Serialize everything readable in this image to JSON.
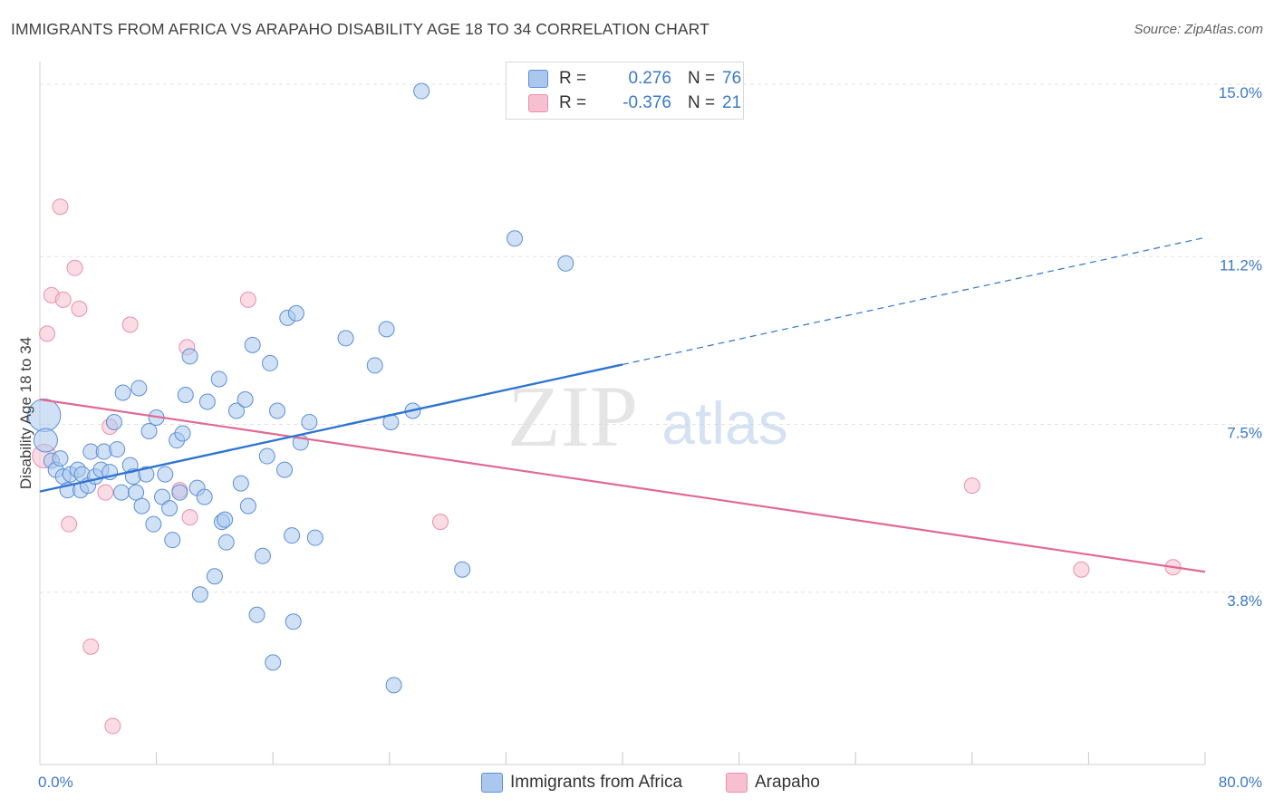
{
  "header": {
    "title": "IMMIGRANTS FROM AFRICA VS ARAPAHO DISABILITY AGE 18 TO 34 CORRELATION CHART",
    "source": "Source: ZipAtlas.com"
  },
  "watermark": {
    "zip": "ZIP",
    "atlas": "atlas"
  },
  "legend": {
    "rows": [
      {
        "r_label": "R =",
        "r_value": "0.276",
        "n_label": "N =",
        "n_value": "76"
      },
      {
        "r_label": "R =",
        "r_value": "-0.376",
        "n_label": "N =",
        "n_value": "21"
      }
    ]
  },
  "bottom_legend": {
    "items": [
      {
        "label": "Immigrants from Africa"
      },
      {
        "label": "Arapaho"
      }
    ]
  },
  "colors": {
    "blue_fill": "#aac8ee",
    "blue_stroke": "#5b8fd6",
    "blue_line": "#2f74d0",
    "pink_fill": "#f7c0d0",
    "pink_stroke": "#e890ac",
    "pink_line": "#e06a94",
    "tick_label": "#3a78c9",
    "grid": "#e3e3e3"
  },
  "chart_data": {
    "type": "scatter",
    "title": "IMMIGRANTS FROM AFRICA VS ARAPAHO DISABILITY AGE 18 TO 34 CORRELATION CHART",
    "xlabel": "",
    "ylabel": "Disability Age 18 to 34",
    "xlim": [
      0,
      80
    ],
    "ylim": [
      0,
      15.5
    ],
    "x_tick_labels": [
      "0.0%",
      "80.0%"
    ],
    "y_ticks": [
      3.8,
      7.5,
      11.2,
      15.0
    ],
    "y_tick_labels": [
      "3.8%",
      "7.5%",
      "11.2%",
      "15.0%"
    ],
    "grid": "horizontal dashed",
    "legend_position": "top-center",
    "series": [
      {
        "name": "Immigrants from Africa",
        "r": 0.276,
        "n": 76,
        "trend": {
          "x": [
            0,
            40
          ],
          "y": [
            6.02,
            8.82
          ]
        },
        "trend_extension": {
          "x": [
            40,
            80
          ],
          "y": [
            8.82,
            11.62
          ]
        },
        "points": [
          {
            "x": 0.3,
            "y": 7.7,
            "s": "xl"
          },
          {
            "x": 0.4,
            "y": 7.15,
            "s": "l"
          },
          {
            "x": 0.8,
            "y": 6.7
          },
          {
            "x": 1.1,
            "y": 6.5
          },
          {
            "x": 1.4,
            "y": 6.75
          },
          {
            "x": 1.6,
            "y": 6.35
          },
          {
            "x": 1.9,
            "y": 6.05
          },
          {
            "x": 2.1,
            "y": 6.4
          },
          {
            "x": 2.6,
            "y": 6.5
          },
          {
            "x": 2.8,
            "y": 6.05
          },
          {
            "x": 2.9,
            "y": 6.4
          },
          {
            "x": 3.3,
            "y": 6.15
          },
          {
            "x": 3.5,
            "y": 6.9
          },
          {
            "x": 3.8,
            "y": 6.35
          },
          {
            "x": 4.2,
            "y": 6.5
          },
          {
            "x": 4.4,
            "y": 6.9
          },
          {
            "x": 4.8,
            "y": 6.45
          },
          {
            "x": 5.1,
            "y": 7.55
          },
          {
            "x": 5.3,
            "y": 6.95
          },
          {
            "x": 5.6,
            "y": 6.0
          },
          {
            "x": 5.7,
            "y": 8.2
          },
          {
            "x": 6.2,
            "y": 6.6
          },
          {
            "x": 6.4,
            "y": 6.35
          },
          {
            "x": 6.6,
            "y": 6.0
          },
          {
            "x": 6.8,
            "y": 8.3
          },
          {
            "x": 7.0,
            "y": 5.7
          },
          {
            "x": 7.3,
            "y": 6.4
          },
          {
            "x": 7.5,
            "y": 7.35
          },
          {
            "x": 7.8,
            "y": 5.3
          },
          {
            "x": 8.0,
            "y": 7.65
          },
          {
            "x": 8.4,
            "y": 5.9
          },
          {
            "x": 8.6,
            "y": 6.4
          },
          {
            "x": 8.9,
            "y": 5.65
          },
          {
            "x": 9.1,
            "y": 4.95
          },
          {
            "x": 9.4,
            "y": 7.15
          },
          {
            "x": 9.6,
            "y": 6.0
          },
          {
            "x": 9.8,
            "y": 7.3
          },
          {
            "x": 10.0,
            "y": 8.15
          },
          {
            "x": 10.3,
            "y": 9.0
          },
          {
            "x": 10.8,
            "y": 6.1
          },
          {
            "x": 11.0,
            "y": 3.75
          },
          {
            "x": 11.3,
            "y": 5.9
          },
          {
            "x": 11.5,
            "y": 8.0
          },
          {
            "x": 12.0,
            "y": 4.15
          },
          {
            "x": 12.3,
            "y": 8.5
          },
          {
            "x": 12.5,
            "y": 5.35
          },
          {
            "x": 12.7,
            "y": 5.4
          },
          {
            "x": 12.8,
            "y": 4.9
          },
          {
            "x": 13.5,
            "y": 7.8
          },
          {
            "x": 13.8,
            "y": 6.2
          },
          {
            "x": 14.1,
            "y": 8.05
          },
          {
            "x": 14.3,
            "y": 5.7
          },
          {
            "x": 14.6,
            "y": 9.25
          },
          {
            "x": 14.9,
            "y": 3.3
          },
          {
            "x": 15.3,
            "y": 4.6
          },
          {
            "x": 15.6,
            "y": 6.8
          },
          {
            "x": 15.8,
            "y": 8.85
          },
          {
            "x": 16.0,
            "y": 2.25
          },
          {
            "x": 16.3,
            "y": 7.8
          },
          {
            "x": 16.8,
            "y": 6.5
          },
          {
            "x": 17.0,
            "y": 9.85
          },
          {
            "x": 17.3,
            "y": 5.05
          },
          {
            "x": 17.4,
            "y": 3.15
          },
          {
            "x": 17.6,
            "y": 9.95
          },
          {
            "x": 17.9,
            "y": 7.1
          },
          {
            "x": 18.5,
            "y": 7.55
          },
          {
            "x": 18.9,
            "y": 5.0
          },
          {
            "x": 21.0,
            "y": 9.4
          },
          {
            "x": 23.0,
            "y": 8.8
          },
          {
            "x": 23.8,
            "y": 9.6
          },
          {
            "x": 24.1,
            "y": 7.55
          },
          {
            "x": 24.3,
            "y": 1.75
          },
          {
            "x": 25.6,
            "y": 7.8
          },
          {
            "x": 26.2,
            "y": 14.85
          },
          {
            "x": 29.0,
            "y": 4.3
          },
          {
            "x": 32.6,
            "y": 11.6
          },
          {
            "x": 36.1,
            "y": 11.05
          }
        ]
      },
      {
        "name": "Arapaho",
        "r": -0.376,
        "n": 21,
        "trend": {
          "x": [
            0,
            80
          ],
          "y": [
            8.05,
            4.25
          ]
        },
        "points": [
          {
            "x": 0.3,
            "y": 6.8,
            "s": "l"
          },
          {
            "x": 0.5,
            "y": 9.5
          },
          {
            "x": 0.8,
            "y": 10.35
          },
          {
            "x": 1.4,
            "y": 12.3
          },
          {
            "x": 1.6,
            "y": 10.25
          },
          {
            "x": 2.0,
            "y": 5.3
          },
          {
            "x": 2.4,
            "y": 10.95
          },
          {
            "x": 2.7,
            "y": 10.05
          },
          {
            "x": 3.5,
            "y": 2.6
          },
          {
            "x": 4.5,
            "y": 6.0
          },
          {
            "x": 4.8,
            "y": 7.45
          },
          {
            "x": 5.0,
            "y": 0.85
          },
          {
            "x": 6.2,
            "y": 9.7
          },
          {
            "x": 9.6,
            "y": 6.05
          },
          {
            "x": 10.1,
            "y": 9.2
          },
          {
            "x": 10.3,
            "y": 5.45
          },
          {
            "x": 14.3,
            "y": 10.25
          },
          {
            "x": 27.5,
            "y": 5.35
          },
          {
            "x": 64.0,
            "y": 6.15
          },
          {
            "x": 71.5,
            "y": 4.3
          },
          {
            "x": 77.8,
            "y": 4.35
          }
        ]
      }
    ]
  }
}
